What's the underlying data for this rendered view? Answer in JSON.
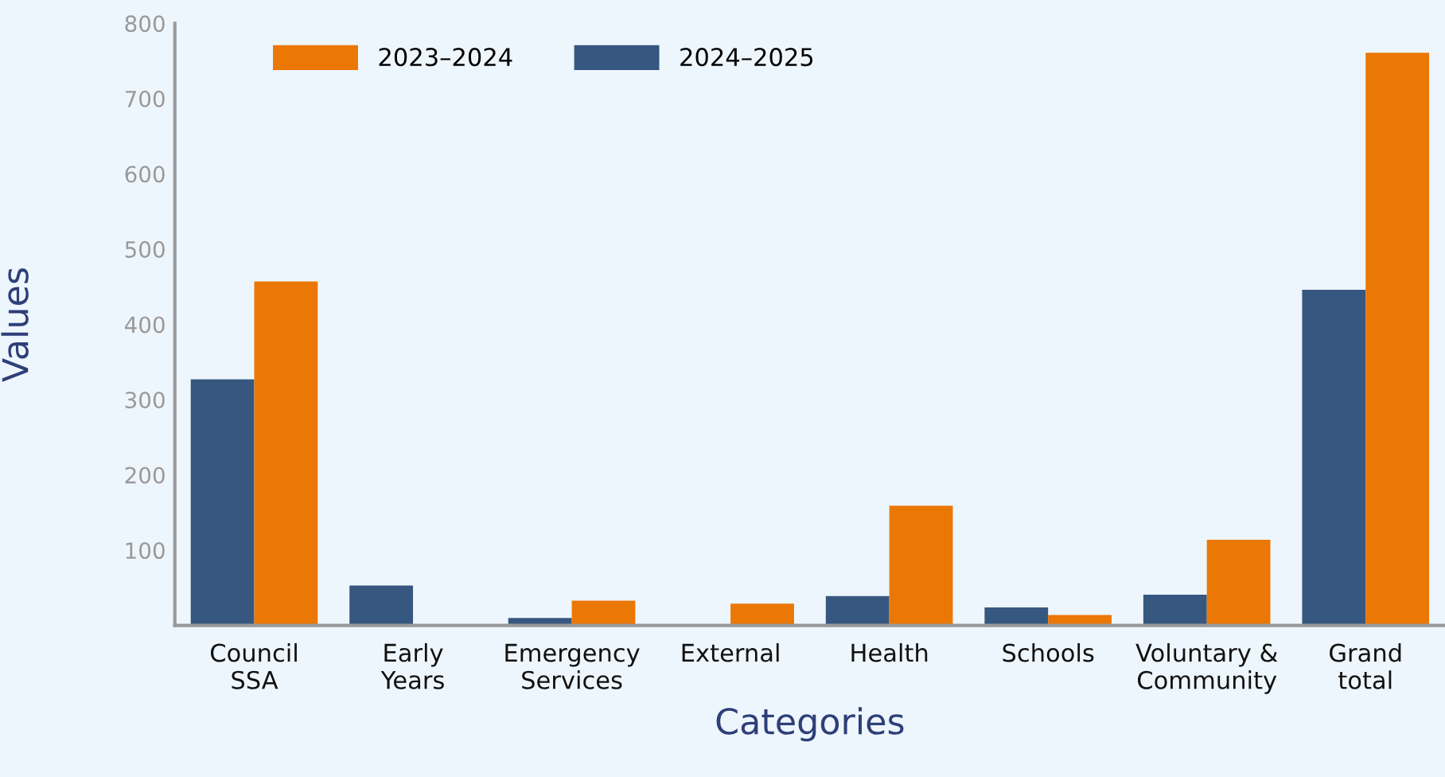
{
  "chart_data": {
    "type": "bar",
    "xlabel": "Categories",
    "ylabel": "Values",
    "categories": [
      "Council\nSSA",
      "Early\nYears",
      "Emergency\nServices",
      "External",
      "Health",
      "Schools",
      "Voluntary &\nCommunity",
      "Grand\ntotal"
    ],
    "series": [
      {
        "name": "2024–2025",
        "color": "#36577f",
        "values": [
          327,
          53,
          10,
          null,
          39,
          24,
          41,
          446
        ]
      },
      {
        "name": "2023–2024",
        "color": "#eb7705",
        "values": [
          457,
          null,
          33,
          29,
          159,
          14,
          114,
          761
        ]
      }
    ],
    "ylim": [
      0,
      800
    ],
    "yticks": [
      100,
      200,
      300,
      400,
      500,
      600,
      700,
      800
    ],
    "grid": false,
    "legend": "top left"
  }
}
